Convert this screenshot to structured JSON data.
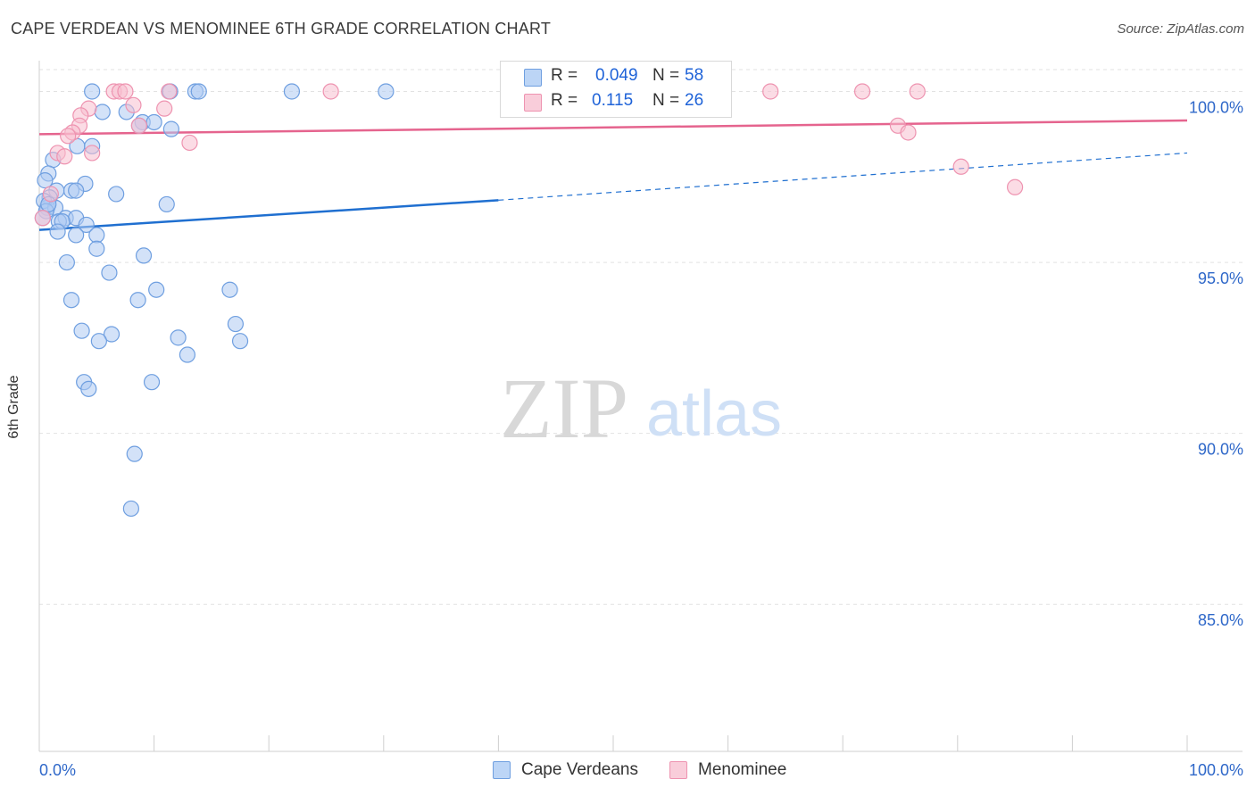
{
  "header": {
    "title": "CAPE VERDEAN VS MENOMINEE 6TH GRADE CORRELATION CHART",
    "source": "Source: ZipAtlas.com"
  },
  "watermark": {
    "zip": "ZIP",
    "atlas": "atlas"
  },
  "legend": {
    "series1": {
      "r_label": "R =",
      "r_value": "0.049",
      "n_label": "N =",
      "n_value": "58"
    },
    "series2": {
      "r_label": "R =",
      "r_value": "0.115",
      "n_label": "N =",
      "n_value": "26"
    }
  },
  "bottom_legend": {
    "item1": "Cape Verdeans",
    "item2": "Menominee"
  },
  "colors": {
    "blue_fill": "#aecbf3",
    "blue_stroke": "#6f9fe0",
    "blue_line": "#1f6fd0",
    "pink_fill": "#f7bfd0",
    "pink_stroke": "#ee93b0",
    "pink_line": "#e5648e",
    "tick_text": "#2f68c9",
    "grid": "#e2e2e2"
  },
  "chart_data": {
    "type": "scatter",
    "title": "CAPE VERDEAN VS MENOMINEE 6TH GRADE CORRELATION CHART",
    "xlabel": "",
    "ylabel": "6th Grade",
    "xlim": [
      0,
      100
    ],
    "ylim": [
      80.7,
      100.9
    ],
    "x_tick_labels": {
      "left": "0.0%",
      "right": "100.0%"
    },
    "y_ticks": [
      {
        "value": 100,
        "label": "100.0%"
      },
      {
        "value": 95,
        "label": "95.0%"
      },
      {
        "value": 90,
        "label": "90.0%"
      },
      {
        "value": 85,
        "label": "85.0%"
      }
    ],
    "series": [
      {
        "name": "Cape Verdeans",
        "color": "#aecbf3",
        "points": [
          [
            4.6,
            100
          ],
          [
            11.4,
            100
          ],
          [
            13.6,
            100
          ],
          [
            13.9,
            100
          ],
          [
            22.0,
            100
          ],
          [
            30.2,
            100
          ],
          [
            5.5,
            99.4
          ],
          [
            7.6,
            99.4
          ],
          [
            9.0,
            99.1
          ],
          [
            10.0,
            99.1
          ],
          [
            8.7,
            99.0
          ],
          [
            11.5,
            98.9
          ],
          [
            3.3,
            98.4
          ],
          [
            4.6,
            98.4
          ],
          [
            1.2,
            98.0
          ],
          [
            0.8,
            97.6
          ],
          [
            0.5,
            97.4
          ],
          [
            4.0,
            97.3
          ],
          [
            1.5,
            97.1
          ],
          [
            2.8,
            97.1
          ],
          [
            3.2,
            97.1
          ],
          [
            6.7,
            97.0
          ],
          [
            0.9,
            96.9
          ],
          [
            0.7,
            96.6
          ],
          [
            0.4,
            96.8
          ],
          [
            11.1,
            96.7
          ],
          [
            1.4,
            96.6
          ],
          [
            0.6,
            96.5
          ],
          [
            2.3,
            96.3
          ],
          [
            3.2,
            96.3
          ],
          [
            1.7,
            96.2
          ],
          [
            2.0,
            96.2
          ],
          [
            4.1,
            96.1
          ],
          [
            1.6,
            95.9
          ],
          [
            3.2,
            95.8
          ],
          [
            5.0,
            95.8
          ],
          [
            5.0,
            95.4
          ],
          [
            9.1,
            95.2
          ],
          [
            2.4,
            95.0
          ],
          [
            6.1,
            94.7
          ],
          [
            10.2,
            94.2
          ],
          [
            16.6,
            94.2
          ],
          [
            2.8,
            93.9
          ],
          [
            8.6,
            93.9
          ],
          [
            17.1,
            93.2
          ],
          [
            3.7,
            93.0
          ],
          [
            6.3,
            92.9
          ],
          [
            5.2,
            92.7
          ],
          [
            12.1,
            92.8
          ],
          [
            17.5,
            92.7
          ],
          [
            12.9,
            92.3
          ],
          [
            3.9,
            91.5
          ],
          [
            4.3,
            91.3
          ],
          [
            9.8,
            91.5
          ],
          [
            8.3,
            89.4
          ],
          [
            8.0,
            87.8
          ],
          [
            0.3,
            96.3
          ],
          [
            0.8,
            96.7
          ]
        ]
      },
      {
        "name": "Menominee",
        "color": "#f7bfd0",
        "points": [
          [
            6.5,
            100
          ],
          [
            7.0,
            100
          ],
          [
            7.5,
            100
          ],
          [
            11.3,
            100
          ],
          [
            25.4,
            100
          ],
          [
            63.7,
            100
          ],
          [
            71.7,
            100
          ],
          [
            76.5,
            100
          ],
          [
            8.2,
            99.6
          ],
          [
            10.9,
            99.5
          ],
          [
            4.3,
            99.5
          ],
          [
            3.6,
            99.3
          ],
          [
            8.7,
            99.0
          ],
          [
            3.5,
            99.0
          ],
          [
            74.8,
            99.0
          ],
          [
            75.7,
            98.8
          ],
          [
            2.9,
            98.8
          ],
          [
            2.5,
            98.7
          ],
          [
            13.1,
            98.5
          ],
          [
            4.6,
            98.2
          ],
          [
            1.6,
            98.2
          ],
          [
            2.2,
            98.1
          ],
          [
            80.3,
            97.8
          ],
          [
            85.0,
            97.2
          ],
          [
            1.0,
            97.0
          ],
          [
            0.3,
            96.3
          ]
        ]
      }
    ],
    "trendlines": [
      {
        "series": "Cape Verdeans",
        "solid": [
          [
            0,
            95.95
          ],
          [
            40.0,
            96.82
          ]
        ],
        "dashed": [
          [
            40.0,
            96.82
          ],
          [
            100,
            98.2
          ]
        ]
      },
      {
        "series": "Menominee",
        "solid": [
          [
            0,
            98.75
          ],
          [
            100,
            99.15
          ]
        ]
      }
    ]
  }
}
